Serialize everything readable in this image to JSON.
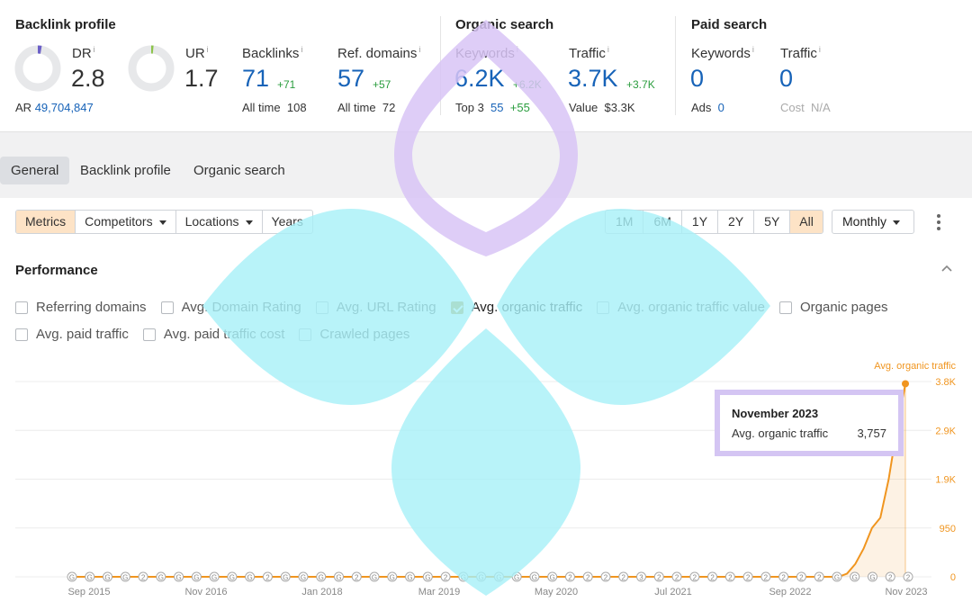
{
  "backlink_profile": {
    "title": "Backlink profile",
    "dr": {
      "label": "DR",
      "info": "i",
      "value": "2.8",
      "fill_fraction": 0.028
    },
    "ur": {
      "label": "UR",
      "info": "i",
      "value": "1.7",
      "fill_fraction": 0.017
    },
    "ar": {
      "label": "AR",
      "value": "49,704,847"
    },
    "backlinks": {
      "label": "Backlinks",
      "info": "i",
      "value": "71",
      "delta": "+71",
      "sub_label": "All time",
      "sub_value": "108"
    },
    "ref_domains": {
      "label": "Ref. domains",
      "info": "i",
      "value": "57",
      "delta": "+57",
      "sub_label": "All time",
      "sub_value": "72"
    }
  },
  "organic_search": {
    "title": "Organic search",
    "keywords": {
      "label": "Keywords",
      "info": "i",
      "value": "6.2K",
      "delta": "+6.2K",
      "sub_label": "Top 3",
      "sub_value": "55",
      "sub_delta": "+55"
    },
    "traffic": {
      "label": "Traffic",
      "info": "i",
      "value": "3.7K",
      "delta": "+3.7K",
      "sub_label": "Value",
      "sub_value": "$3.3K"
    }
  },
  "paid_search": {
    "title": "Paid search",
    "keywords": {
      "label": "Keywords",
      "info": "i",
      "value": "0",
      "sub_label": "Ads",
      "sub_value": "0"
    },
    "traffic": {
      "label": "Traffic",
      "info": "i",
      "value": "0",
      "sub_label": "Cost",
      "sub_value": "N/A"
    }
  },
  "tabs": [
    {
      "label": "General",
      "active": true
    },
    {
      "label": "Backlink profile",
      "active": false
    },
    {
      "label": "Organic search",
      "active": false
    }
  ],
  "controls": {
    "metrics": "Metrics",
    "competitors": "Competitors",
    "locations": "Locations",
    "years": "Years",
    "ranges": [
      "1M",
      "6M",
      "1Y",
      "2Y",
      "5Y",
      "All"
    ],
    "selected_range": "All",
    "interval": "Monthly"
  },
  "performance": {
    "title": "Performance",
    "checkboxes_row1": [
      {
        "label": "Referring domains",
        "checked": false
      },
      {
        "label": "Avg. Domain Rating",
        "checked": false
      },
      {
        "label": "Avg. URL Rating",
        "checked": false
      },
      {
        "label": "Avg. organic traffic",
        "checked": true
      },
      {
        "label": "Avg. organic traffic value",
        "checked": false
      },
      {
        "label": "Organic pages",
        "checked": false
      }
    ],
    "checkboxes_row2": [
      {
        "label": "Avg. paid traffic",
        "checked": false
      },
      {
        "label": "Avg. paid traffic cost",
        "checked": false
      },
      {
        "label": "Crawled pages",
        "checked": false
      }
    ]
  },
  "tooltip": {
    "title": "November 2023",
    "label": "Avg. organic traffic",
    "value": "3,757"
  },
  "colors": {
    "accent_orange": "#f0951f",
    "link_blue": "#1763b8",
    "delta_green": "#2a9d3e",
    "watermark_cyan": "#a6f0f8",
    "watermark_purple": "#d8c4f6"
  },
  "chart_data": {
    "type": "area",
    "series": [
      {
        "name": "Avg. organic traffic",
        "points": [
          [
            "2015-07",
            0
          ],
          [
            "2023-03",
            0
          ],
          [
            "2023-04",
            60
          ],
          [
            "2023-05",
            250
          ],
          [
            "2023-06",
            550
          ],
          [
            "2023-07",
            950
          ],
          [
            "2023-08",
            1150
          ],
          [
            "2023-09",
            1900
          ],
          [
            "2023-10",
            2900
          ],
          [
            "2023-11",
            3757
          ]
        ]
      }
    ],
    "x_ticks": [
      "Sep 2015",
      "Nov 2016",
      "Jan 2018",
      "Mar 2019",
      "May 2020",
      "Jul 2021",
      "Sep 2022",
      "Nov 2023"
    ],
    "y_ticks": [
      "0",
      "950",
      "1.9K",
      "2.9K",
      "3.8K"
    ],
    "y_tick_values": [
      0,
      950,
      1900,
      2850,
      3800
    ],
    "ylim": [
      0,
      3800
    ],
    "grid": true,
    "annotation_markers": [
      "G",
      "G",
      "G",
      "G",
      "2",
      "G",
      "G",
      "G",
      "G",
      "G",
      "G",
      "2",
      "G",
      "G",
      "G",
      "G",
      "2",
      "G",
      "G",
      "G",
      "G",
      "2",
      "G",
      "G",
      "G",
      "G",
      "G",
      "G",
      "2",
      "2",
      "2",
      "2",
      "3",
      "2",
      "2",
      "2",
      "2",
      "2",
      "2",
      "2",
      "2",
      "2",
      "2",
      "G",
      "G",
      "G",
      "2",
      "2"
    ]
  }
}
